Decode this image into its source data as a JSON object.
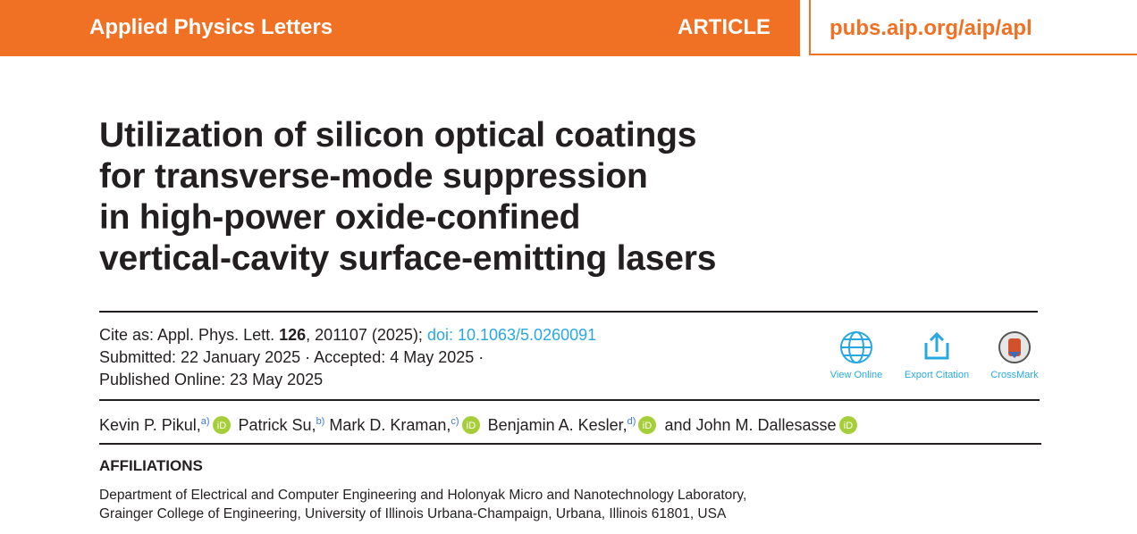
{
  "header": {
    "journal": "Applied Physics Letters",
    "section": "ARTICLE",
    "url": "pubs.aip.org/aip/apl"
  },
  "title_lines": [
    "Utilization of silicon optical coatings",
    "for transverse-mode suppression",
    "in high-power oxide-confined",
    "vertical-cavity surface-emitting lasers"
  ],
  "citation": {
    "prefix": "Cite as: Appl. Phys. Lett.",
    "volume": "126",
    "rest": ", 201107 (2025);",
    "doi": "doi: 10.1063/5.0260091",
    "dates": "Submitted: 22 January 2025 · Accepted: 4 May 2025 ·",
    "published": "Published Online: 23 May 2025"
  },
  "actions": [
    "View Online",
    "Export Citation",
    "CrossMark"
  ],
  "authors": [
    {
      "name": "Kevin P. Pikul,",
      "note": "a)"
    },
    {
      "name": "Patrick Su,",
      "note": "b)"
    },
    {
      "name": "Mark D. Kraman,",
      "note": "c)"
    },
    {
      "name": "Benjamin A. Kesler,",
      "note": "d)"
    },
    {
      "name": "and John M. Dallesasse"
    }
  ],
  "affiliations": {
    "heading": "AFFILIATIONS",
    "lines": [
      "Department of Electrical and Computer Engineering and Holonyak Micro and Nanotechnology Laboratory,",
      "Grainger College of Engineering, University of Illinois Urbana-Champaign, Urbana, Illinois 61801, USA"
    ]
  }
}
